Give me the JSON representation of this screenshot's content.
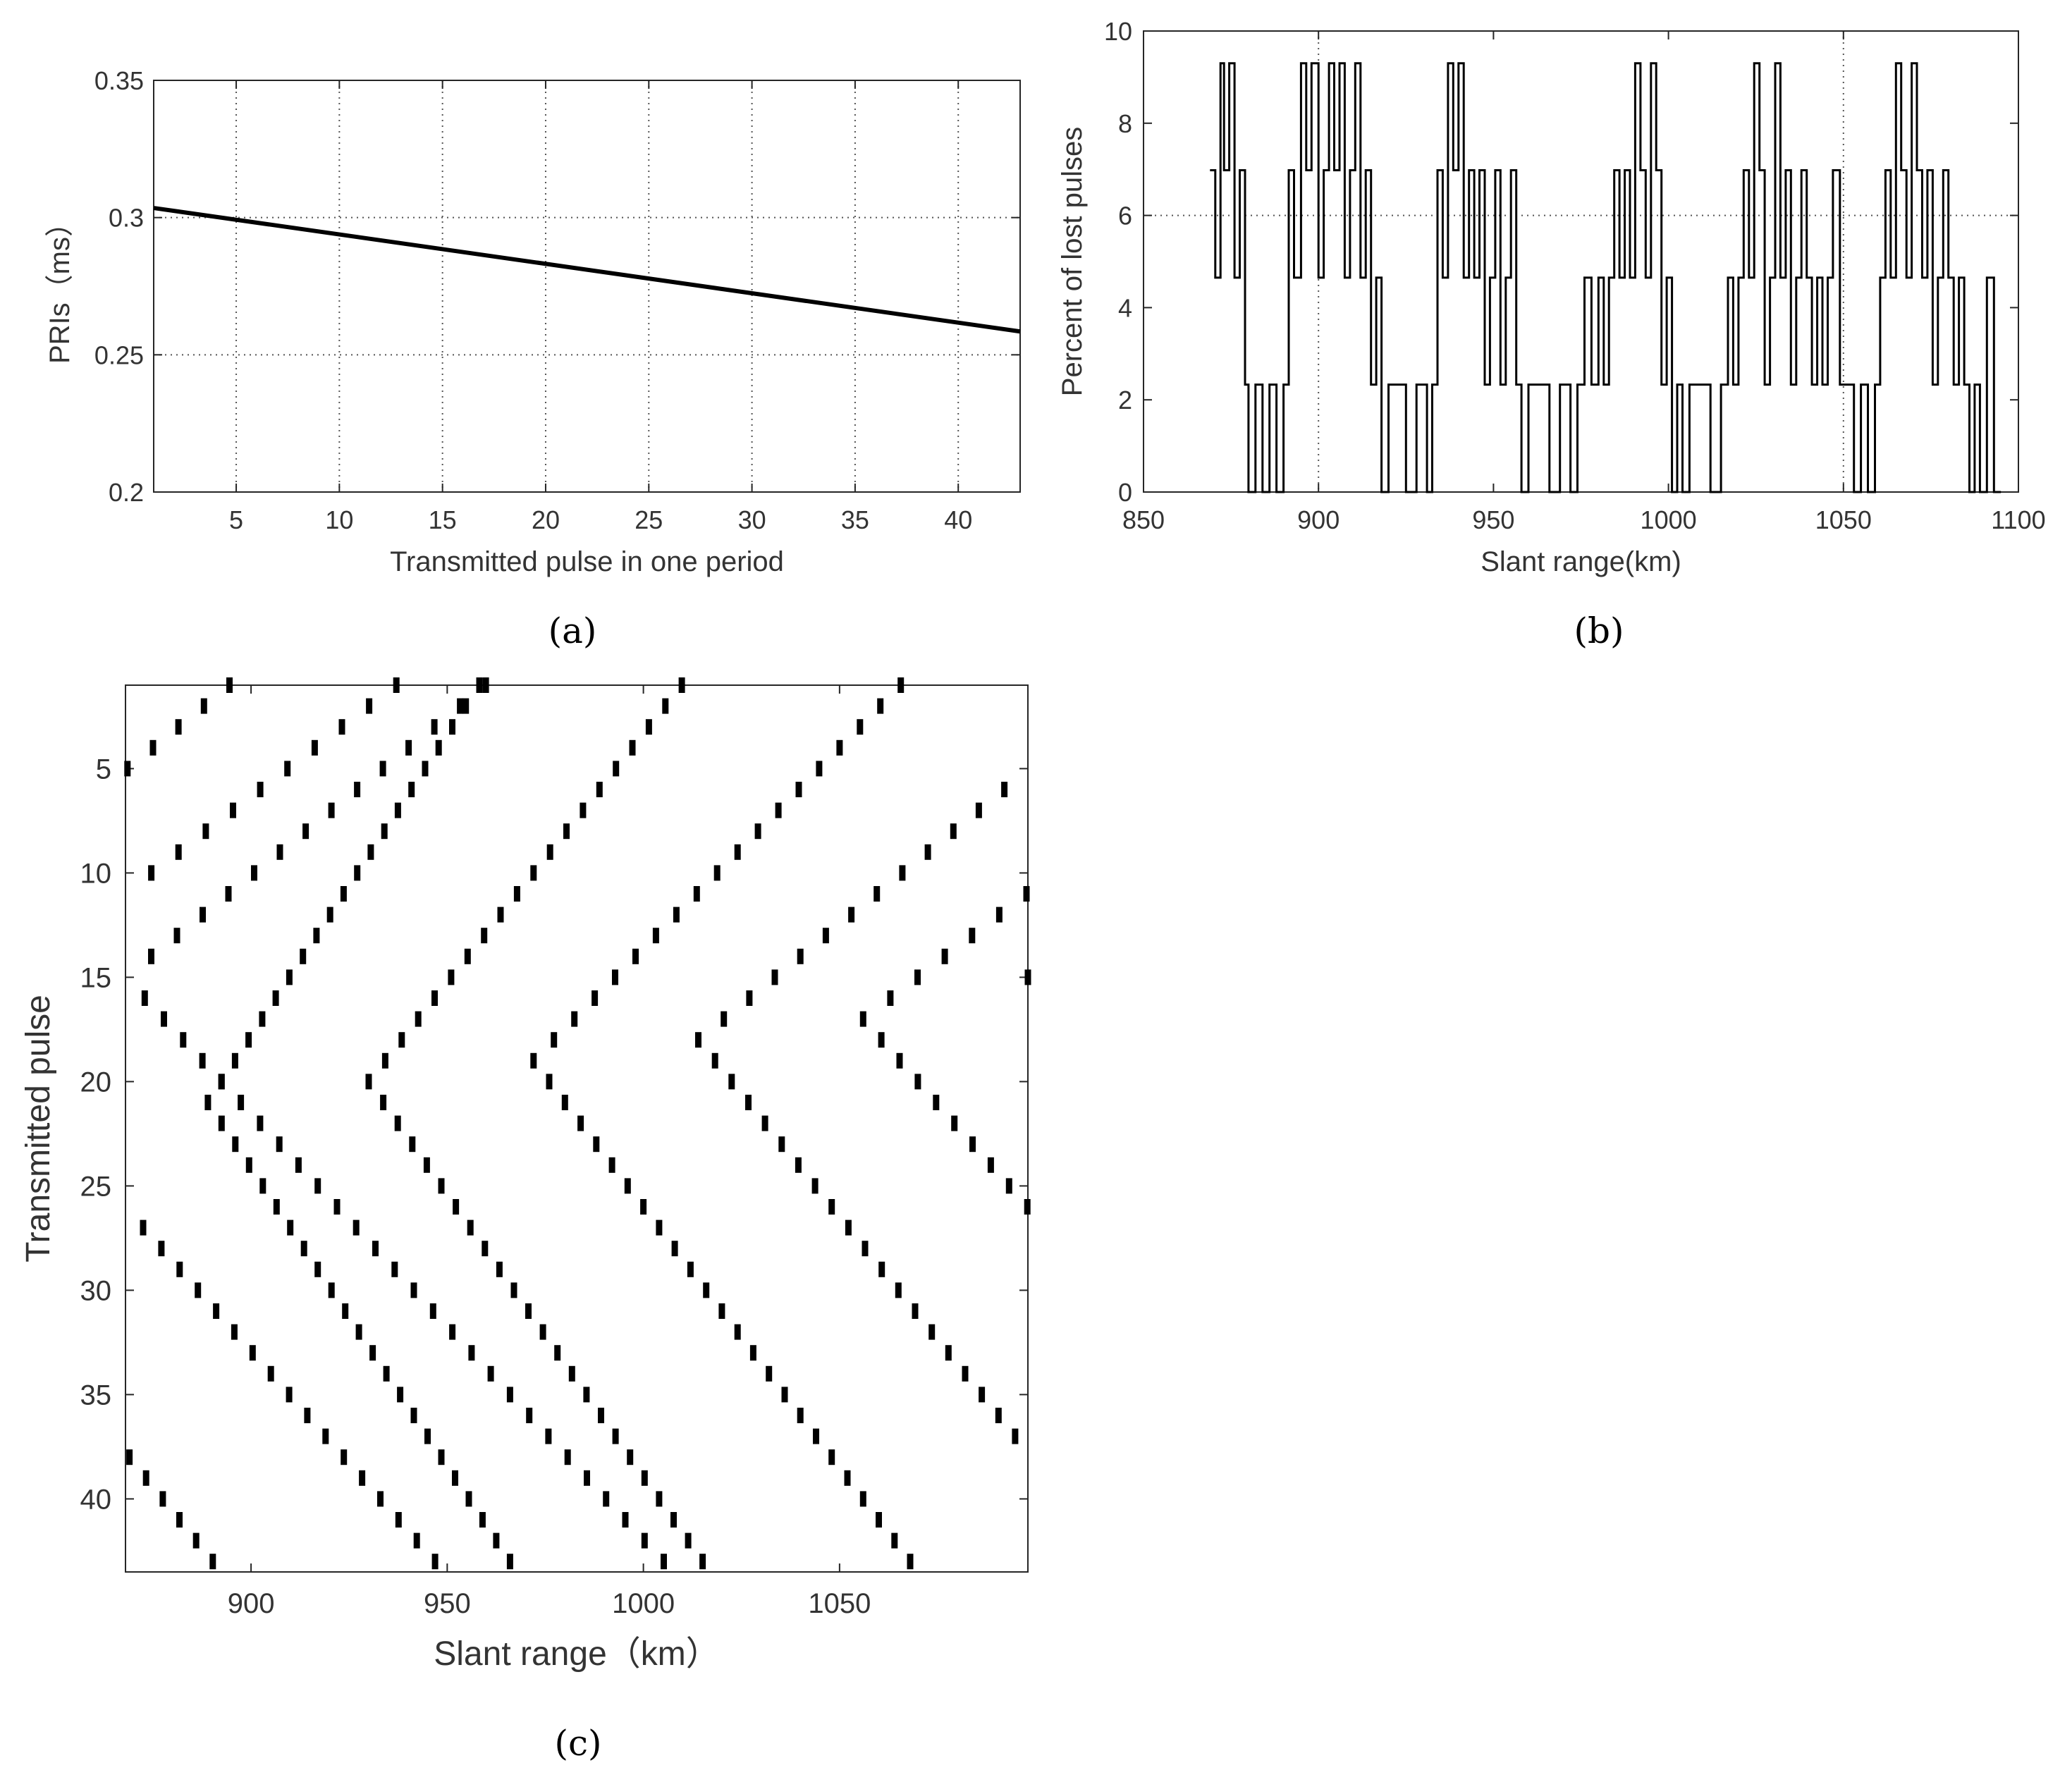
{
  "figure": {
    "panels": [
      {
        "id": "a",
        "caption": "(a)"
      },
      {
        "id": "b",
        "caption": "(b)"
      },
      {
        "id": "c",
        "caption": "(c)"
      }
    ]
  },
  "colors": {
    "line": "#000000",
    "axis": "#262626",
    "grid": "#555555",
    "text": "#333333",
    "background": "#ffffff"
  },
  "chart_data": [
    {
      "panel": "a",
      "type": "line",
      "xlabel": "Transmitted pulse in one period",
      "ylabel": "PRIs（ms）",
      "xlim": [
        1,
        43
      ],
      "ylim": [
        0.2,
        0.35
      ],
      "xticks": [
        5,
        10,
        15,
        20,
        25,
        30,
        35,
        40
      ],
      "yticks": [
        0.2,
        0.25,
        0.3,
        0.35
      ],
      "ytick_labels": [
        "0.2",
        "0.25",
        "0.3",
        "0.35"
      ],
      "grid": true,
      "series": [
        {
          "x": [
            1,
            43
          ],
          "y": [
            0.3035,
            0.2585
          ]
        }
      ]
    },
    {
      "panel": "b",
      "type": "line",
      "xlabel": "Slant range(km)",
      "ylabel": "Percent of lost pulses",
      "xlim": [
        850,
        1100
      ],
      "ylim": [
        0,
        10
      ],
      "xticks": [
        850,
        900,
        950,
        1000,
        1050,
        1100
      ],
      "yticks": [
        0,
        2,
        4,
        6,
        8,
        10
      ],
      "grid": true,
      "level_values": [
        0,
        2.33,
        4.65,
        6.98,
        9.3
      ],
      "range_start": 869,
      "range_end": 1097,
      "series": [
        {
          "x_breaks": [
            869,
            870.5,
            872,
            873,
            874.5,
            876,
            877.5,
            879,
            880,
            882,
            884,
            886,
            888,
            890,
            891.5,
            893,
            895,
            896.5,
            898,
            900,
            901.5,
            903,
            904.5,
            906,
            907.5,
            909,
            910.5,
            912,
            913.5,
            915,
            916.5,
            918,
            920,
            922,
            925,
            928,
            931,
            932.5,
            934,
            935.5,
            937,
            938.5,
            940,
            941.5,
            943,
            944.5,
            946,
            947.5,
            949,
            950.5,
            952,
            953.5,
            955,
            956.5,
            958,
            960,
            963,
            966,
            969,
            972,
            974,
            976,
            978,
            980,
            981.5,
            983,
            984.5,
            986,
            987.5,
            989,
            990.5,
            992,
            993.5,
            995,
            996.5,
            998,
            999.5,
            1001,
            1002.5,
            1004,
            1006,
            1009,
            1012,
            1015,
            1017,
            1018.5,
            1020,
            1021.5,
            1023,
            1024.5,
            1026,
            1027.5,
            1029,
            1030.5,
            1032,
            1033.5,
            1035,
            1036.5,
            1038,
            1039.5,
            1041,
            1042.5,
            1044,
            1045.5,
            1047,
            1049,
            1051,
            1053,
            1055,
            1057,
            1059,
            1060.5,
            1062,
            1063.5,
            1065,
            1066.5,
            1068,
            1069.5,
            1071,
            1072.5,
            1074,
            1075.5,
            1077,
            1078.5,
            1080,
            1081.5,
            1083,
            1084.5,
            1086,
            1087.5,
            1089,
            1091,
            1093,
            1095,
            1097
          ],
          "levels": [
            3,
            2,
            4,
            3,
            4,
            2,
            3,
            1,
            0,
            1,
            0,
            1,
            0,
            1,
            3,
            2,
            4,
            3,
            4,
            2,
            3,
            4,
            3,
            4,
            2,
            3,
            4,
            2,
            3,
            1,
            2,
            0,
            1,
            1,
            0,
            1,
            0,
            1,
            3,
            2,
            4,
            3,
            4,
            2,
            3,
            2,
            3,
            1,
            2,
            3,
            1,
            2,
            3,
            1,
            0,
            1,
            1,
            0,
            1,
            0,
            1,
            2,
            1,
            2,
            1,
            2,
            3,
            2,
            3,
            2,
            4,
            3,
            2,
            4,
            3,
            1,
            2,
            0,
            1,
            0,
            1,
            1,
            0,
            1,
            2,
            1,
            2,
            3,
            2,
            4,
            3,
            1,
            2,
            4,
            2,
            3,
            1,
            2,
            3,
            2,
            1,
            2,
            1,
            2,
            3,
            1,
            1,
            0,
            1,
            0,
            1,
            2,
            3,
            2,
            4,
            3,
            2,
            4,
            3,
            2,
            3,
            1,
            2,
            3,
            2,
            1,
            2,
            1,
            0,
            1,
            0,
            2,
            0
          ]
        }
      ]
    },
    {
      "panel": "c",
      "type": "scatter",
      "xlabel": "Slant range（km）",
      "ylabel": "Transmitted pulse",
      "xlim": [
        868,
        1098
      ],
      "ylim": [
        1,
        43.5
      ],
      "y_reversed": true,
      "xticks": [
        900,
        950,
        1000,
        1050
      ],
      "yticks": [
        5,
        10,
        15,
        20,
        25,
        30,
        35,
        40
      ],
      "grid": false,
      "marker": "short vertical bar",
      "series": [
        {
          "name": "",
          "x_at_top": 875.0,
          "slope_up": -3.46,
          "vertex_x": 889.0,
          "vertex_y": 21,
          "slope_down": 3.5,
          "x_at_bottom": 881.0,
          "y_end": 43
        },
        {
          "name": "",
          "x_at_top": 917.0,
          "slope_up": -4.2,
          "vertex_x": 930.0,
          "vertex_y": 20,
          "slope_down": 3.7,
          "x_at_bottom": 921.0,
          "y_end": 43
        },
        {
          "name": "",
          "x_at_top": 959.0,
          "slope_up": -5.2,
          "vertex_x": 972.0,
          "vertex_y": 19,
          "slope_down": 4.0,
          "x_at_bottom": 963.0,
          "y_end": 43
        },
        {
          "name": "",
          "x_at_top": 1001.0,
          "slope_up": -6.5,
          "vertex_x": 1014.0,
          "vertex_y": 18,
          "slope_down": 4.25,
          "x_at_bottom": 1005.0,
          "y_end": 43
        },
        {
          "name": "",
          "x_at_top": 1043.0,
          "slope_up": -6.94,
          "vertex_x": 1056.0,
          "vertex_y": 17,
          "slope_down": 4.65,
          "x_at_bottom": 1047.0,
          "y_end": 43
        },
        {
          "name": "",
          "x_at_top": 1085.0,
          "slope_up": -6.56,
          "vertex_x": 1098.0,
          "vertex_y": 15,
          "slope_down": 4.9,
          "x_at_bottom": 1089.0,
          "y_end": 43
        }
      ]
    }
  ]
}
